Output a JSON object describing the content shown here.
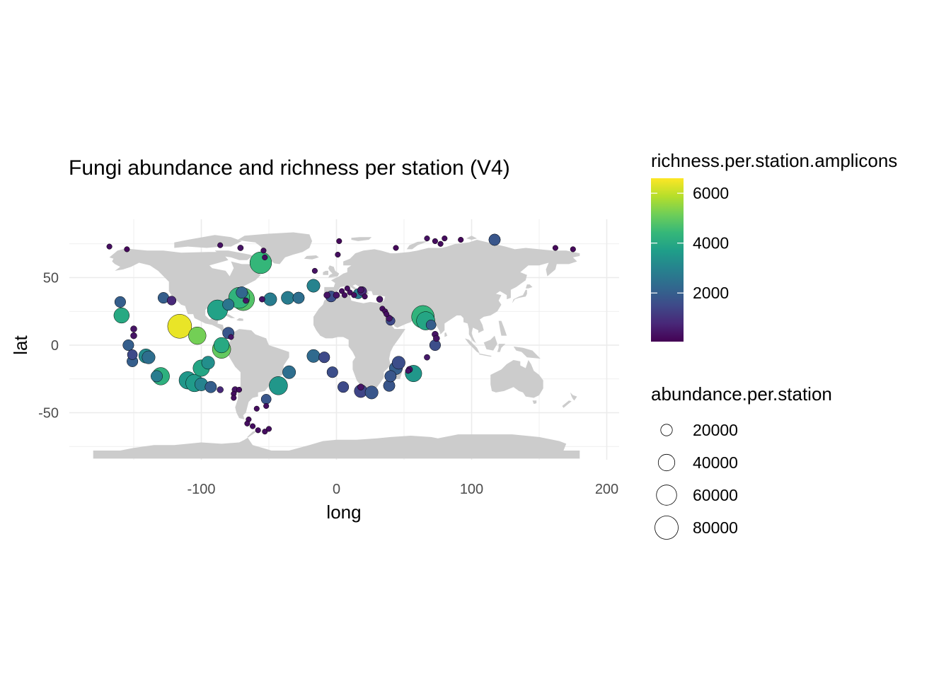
{
  "chart_data": {
    "type": "scatter",
    "title": "Fungi abundance and richness per station (V4)",
    "xlabel": "long",
    "ylabel": "lat",
    "xlim": [
      -185,
      210
    ],
    "ylim": [
      -85,
      90
    ],
    "x_ticks": [
      -100,
      0,
      100,
      200
    ],
    "y_ticks": [
      -50,
      0,
      50
    ],
    "x_tick_labels": [
      "-100",
      "0",
      "100",
      "200"
    ],
    "y_tick_labels": [
      "-50",
      "0",
      "50"
    ],
    "grid": true,
    "background_map": "world",
    "colors": {
      "land": "#cccccc",
      "grid": "#ebebeb",
      "point_stroke": "#000000",
      "viridis": [
        "#440154",
        "#482878",
        "#3e4a89",
        "#31688e",
        "#26828e",
        "#1f9e89",
        "#35b779",
        "#6ece58",
        "#b5de2b",
        "#fde725"
      ]
    },
    "color_legend": {
      "title": "richness.per.station.amplicons",
      "min": 50,
      "max": 6600,
      "breaks": [
        2000,
        4000,
        6000
      ],
      "labels": [
        "2000",
        "4000",
        "6000"
      ]
    },
    "size_legend": {
      "title": "abundance.per.station",
      "breaks": [
        20000,
        40000,
        60000,
        80000
      ],
      "labels": [
        "20000",
        "40000",
        "60000",
        "80000"
      ]
    },
    "points": [
      {
        "long": -168,
        "lat": 73,
        "abundance": 3000,
        "richness": 300
      },
      {
        "long": -155,
        "lat": 71,
        "abundance": 1000,
        "richness": 200
      },
      {
        "long": -86,
        "lat": 74,
        "abundance": 4000,
        "richness": 350
      },
      {
        "long": -71,
        "lat": 72,
        "abundance": 5000,
        "richness": 400
      },
      {
        "long": -54,
        "lat": 70,
        "abundance": 2000,
        "richness": 250
      },
      {
        "long": -56,
        "lat": 61,
        "abundance": 70000,
        "richness": 4400
      },
      {
        "long": -53,
        "lat": 65,
        "abundance": 3000,
        "richness": 300
      },
      {
        "long": 2,
        "lat": 77,
        "abundance": 1000,
        "richness": 200
      },
      {
        "long": 1,
        "lat": 67,
        "abundance": 3000,
        "richness": 300
      },
      {
        "long": -16,
        "lat": 55,
        "abundance": 4000,
        "richness": 350
      },
      {
        "long": 44,
        "lat": 72,
        "abundance": 1000,
        "richness": 200
      },
      {
        "long": 67,
        "lat": 79,
        "abundance": 4000,
        "richness": 350
      },
      {
        "long": 73,
        "lat": 77,
        "abundance": 2000,
        "richness": 250
      },
      {
        "long": 77,
        "lat": 75,
        "abundance": 2000,
        "richness": 250
      },
      {
        "long": 80,
        "lat": 79,
        "abundance": 2000,
        "richness": 250
      },
      {
        "long": 92,
        "lat": 78,
        "abundance": 1000,
        "richness": 200
      },
      {
        "long": 117,
        "lat": 78,
        "abundance": 20000,
        "richness": 1800
      },
      {
        "long": 162,
        "lat": 72,
        "abundance": 1000,
        "richness": 200
      },
      {
        "long": 175,
        "lat": 71,
        "abundance": 1000,
        "richness": 200
      },
      {
        "long": -160,
        "lat": 32,
        "abundance": 18000,
        "richness": 2000
      },
      {
        "long": -159,
        "lat": 22,
        "abundance": 35000,
        "richness": 4000
      },
      {
        "long": -128,
        "lat": 35,
        "abundance": 18000,
        "richness": 2000
      },
      {
        "long": -122,
        "lat": 33,
        "abundance": 12000,
        "richness": 800
      },
      {
        "long": -116,
        "lat": 14,
        "abundance": 85000,
        "richness": 6400
      },
      {
        "long": -103,
        "lat": 7,
        "abundance": 45000,
        "richness": 5200
      },
      {
        "long": -88,
        "lat": 26,
        "abundance": 60000,
        "richness": 3800
      },
      {
        "long": -80,
        "lat": 30,
        "abundance": 20000,
        "richness": 2600
      },
      {
        "long": -72,
        "lat": 35,
        "abundance": 65000,
        "richness": 4300
      },
      {
        "long": -69,
        "lat": 34,
        "abundance": 75000,
        "richness": 4800
      },
      {
        "long": -70,
        "lat": 39,
        "abundance": 20000,
        "richness": 2200
      },
      {
        "long": -67,
        "lat": 33,
        "abundance": 5000,
        "richness": 400
      },
      {
        "long": -55,
        "lat": 34,
        "abundance": 5000,
        "richness": 400
      },
      {
        "long": -49,
        "lat": 34,
        "abundance": 25000,
        "richness": 2800
      },
      {
        "long": -36,
        "lat": 35,
        "abundance": 25000,
        "richness": 2800
      },
      {
        "long": -28,
        "lat": 35,
        "abundance": 20000,
        "richness": 2400
      },
      {
        "long": -17,
        "lat": 44,
        "abundance": 25000,
        "richness": 3000
      },
      {
        "long": -7,
        "lat": 37,
        "abundance": 6000,
        "richness": 400
      },
      {
        "long": -4,
        "lat": 36,
        "abundance": 18000,
        "richness": 1600
      },
      {
        "long": 0,
        "lat": 37,
        "abundance": 6000,
        "richness": 400
      },
      {
        "long": 4,
        "lat": 40,
        "abundance": 4000,
        "richness": 300
      },
      {
        "long": 6,
        "lat": 37,
        "abundance": 4000,
        "richness": 300
      },
      {
        "long": 8,
        "lat": 42,
        "abundance": 4000,
        "richness": 300
      },
      {
        "long": 10,
        "lat": 39,
        "abundance": 4000,
        "richness": 300
      },
      {
        "long": 13,
        "lat": 37,
        "abundance": 4000,
        "richness": 300
      },
      {
        "long": 16,
        "lat": 38,
        "abundance": 15000,
        "richness": 2700
      },
      {
        "long": 18,
        "lat": 41,
        "abundance": 6000,
        "richness": 400
      },
      {
        "long": 19,
        "lat": 40,
        "abundance": 12000,
        "richness": 800
      },
      {
        "long": 21,
        "lat": 36,
        "abundance": 4000,
        "richness": 300
      },
      {
        "long": 32,
        "lat": 34,
        "abundance": 6000,
        "richness": 400
      },
      {
        "long": 34,
        "lat": 27,
        "abundance": 3000,
        "richness": 300
      },
      {
        "long": 36,
        "lat": 25,
        "abundance": 3000,
        "richness": 300
      },
      {
        "long": 37,
        "lat": 23,
        "abundance": 3000,
        "richness": 300
      },
      {
        "long": 39,
        "lat": 20,
        "abundance": 6000,
        "richness": 400
      },
      {
        "long": 40,
        "lat": 18,
        "abundance": 12000,
        "richness": 1500
      },
      {
        "long": 64,
        "lat": 21,
        "abundance": 75000,
        "richness": 4300
      },
      {
        "long": 66,
        "lat": 18,
        "abundance": 50000,
        "richness": 3900
      },
      {
        "long": 70,
        "lat": 15,
        "abundance": 15000,
        "richness": 2000
      },
      {
        "long": 73,
        "lat": 8,
        "abundance": 6000,
        "richness": 400
      },
      {
        "long": 74,
        "lat": 5,
        "abundance": 6000,
        "richness": 400
      },
      {
        "long": 73,
        "lat": 0,
        "abundance": 18000,
        "richness": 1600
      },
      {
        "long": 67,
        "lat": -9,
        "abundance": 5000,
        "richness": 500
      },
      {
        "long": -150,
        "lat": 12,
        "abundance": 6000,
        "richness": 400
      },
      {
        "long": -150,
        "lat": 7,
        "abundance": 6000,
        "richness": 400
      },
      {
        "long": -154,
        "lat": 0,
        "abundance": 18000,
        "richness": 2000
      },
      {
        "long": -151,
        "lat": -7,
        "abundance": 15000,
        "richness": 1500
      },
      {
        "long": -151,
        "lat": -12,
        "abundance": 18000,
        "richness": 2000
      },
      {
        "long": -141,
        "lat": -8,
        "abundance": 30000,
        "richness": 3200
      },
      {
        "long": -139,
        "lat": -9,
        "abundance": 25000,
        "richness": 2400
      },
      {
        "long": -133,
        "lat": -23,
        "abundance": 20000,
        "richness": 2800
      },
      {
        "long": -130,
        "lat": -23,
        "abundance": 45000,
        "richness": 4200
      },
      {
        "long": -110,
        "lat": -26,
        "abundance": 45000,
        "richness": 3500
      },
      {
        "long": -105,
        "lat": -28,
        "abundance": 45000,
        "richness": 3600
      },
      {
        "long": -100,
        "lat": -29,
        "abundance": 25000,
        "richness": 3000
      },
      {
        "long": -100,
        "lat": -17,
        "abundance": 40000,
        "richness": 3900
      },
      {
        "long": -95,
        "lat": -13,
        "abundance": 25000,
        "richness": 3300
      },
      {
        "long": -93,
        "lat": -31,
        "abundance": 20000,
        "richness": 2000
      },
      {
        "long": -86,
        "lat": -33,
        "abundance": 6000,
        "richness": 800
      },
      {
        "long": -85,
        "lat": 0,
        "abundance": 35000,
        "richness": 4000
      },
      {
        "long": -85,
        "lat": -3,
        "abundance": 50000,
        "richness": 5000
      },
      {
        "long": -80,
        "lat": 9,
        "abundance": 20000,
        "richness": 1800
      },
      {
        "long": -78,
        "lat": 6,
        "abundance": 4000,
        "richness": 400
      },
      {
        "long": -75,
        "lat": -33,
        "abundance": 6000,
        "richness": 400
      },
      {
        "long": -76,
        "lat": -36,
        "abundance": 4000,
        "richness": 300
      },
      {
        "long": -76,
        "lat": -39,
        "abundance": 4000,
        "richness": 300
      },
      {
        "long": -72,
        "lat": -33,
        "abundance": 4000,
        "richness": 300
      },
      {
        "long": -52,
        "lat": -40,
        "abundance": 15000,
        "richness": 1800
      },
      {
        "long": -52,
        "lat": -45,
        "abundance": 4000,
        "richness": 300
      },
      {
        "long": -59,
        "lat": -47,
        "abundance": 3000,
        "richness": 300
      },
      {
        "long": -65,
        "lat": -55,
        "abundance": 3000,
        "richness": 300
      },
      {
        "long": -66,
        "lat": -58,
        "abundance": 3000,
        "richness": 300
      },
      {
        "long": -62,
        "lat": -60,
        "abundance": 3000,
        "richness": 300
      },
      {
        "long": -58,
        "lat": -63,
        "abundance": 3000,
        "richness": 300
      },
      {
        "long": -53,
        "lat": -64,
        "abundance": 3000,
        "richness": 300
      },
      {
        "long": -50,
        "lat": -62,
        "abundance": 3000,
        "richness": 300
      },
      {
        "long": -43,
        "lat": -30,
        "abundance": 50000,
        "richness": 3500
      },
      {
        "long": -35,
        "lat": -20,
        "abundance": 25000,
        "richness": 2400
      },
      {
        "long": -17,
        "lat": -8,
        "abundance": 25000,
        "richness": 2300
      },
      {
        "long": -9,
        "lat": -9,
        "abundance": 18000,
        "richness": 1500
      },
      {
        "long": -3,
        "lat": -20,
        "abundance": 18000,
        "richness": 1600
      },
      {
        "long": 5,
        "lat": -31,
        "abundance": 18000,
        "richness": 1500
      },
      {
        "long": 18,
        "lat": -31,
        "abundance": 6000,
        "richness": 400
      },
      {
        "long": 18,
        "lat": -34,
        "abundance": 25000,
        "richness": 1400
      },
      {
        "long": 26,
        "lat": -35,
        "abundance": 25000,
        "richness": 1800
      },
      {
        "long": 39,
        "lat": -30,
        "abundance": 20000,
        "richness": 1800
      },
      {
        "long": 40,
        "lat": -23,
        "abundance": 20000,
        "richness": 1800
      },
      {
        "long": 44,
        "lat": -17,
        "abundance": 25000,
        "richness": 2000
      },
      {
        "long": 46,
        "lat": -13,
        "abundance": 25000,
        "richness": 1600
      },
      {
        "long": 53,
        "lat": -19,
        "abundance": 4000,
        "richness": 400
      },
      {
        "long": 57,
        "lat": -21,
        "abundance": 40000,
        "richness": 3500
      },
      {
        "long": 54,
        "lat": -18,
        "abundance": 6000,
        "richness": 400
      }
    ]
  }
}
